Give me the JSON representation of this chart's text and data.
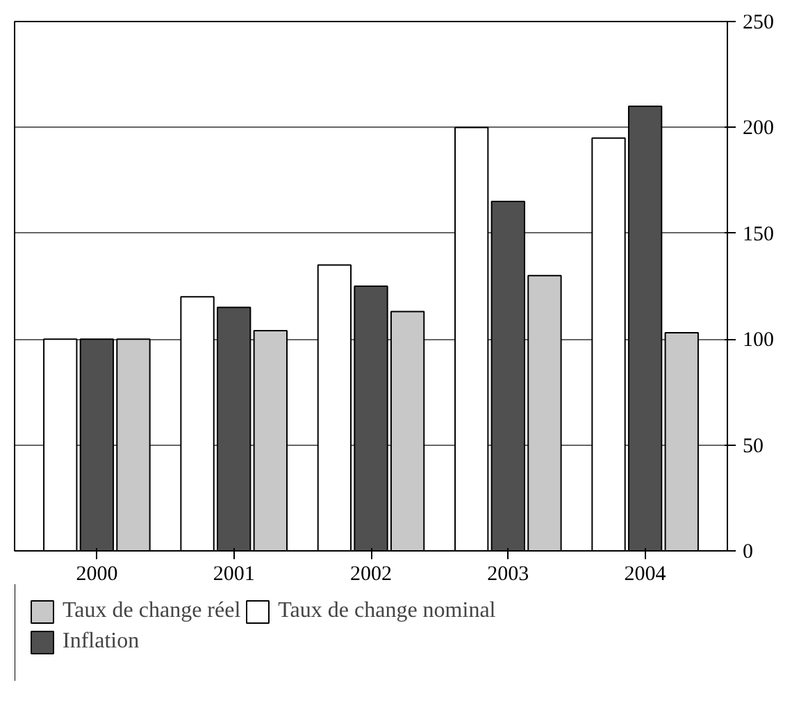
{
  "chart_data": {
    "type": "bar",
    "categories": [
      "2000",
      "2001",
      "2002",
      "2003",
      "2004"
    ],
    "series": [
      {
        "name": "Taux de change réel",
        "color": "#c8c8c8",
        "values": [
          100,
          104,
          113,
          130,
          103
        ]
      },
      {
        "name": "Inflation",
        "color": "#505050",
        "values": [
          100,
          115,
          125,
          165,
          210
        ]
      },
      {
        "name": "Taux de change nominal",
        "color": "#ffffff",
        "values": [
          100,
          120,
          135,
          200,
          195
        ]
      }
    ],
    "ylim": [
      0,
      250
    ],
    "yticks": [
      0,
      50,
      100,
      150,
      200,
      250
    ],
    "grid": "y",
    "legend": "bottom"
  }
}
